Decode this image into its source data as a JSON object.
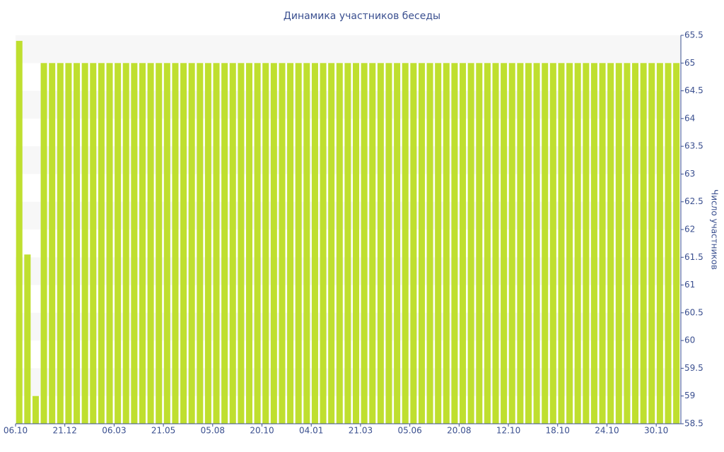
{
  "chart_data": {
    "type": "bar",
    "title": "Динамика участников беседы",
    "y_label": "Число участников",
    "y_axis_position": "right",
    "color": "#bfdf2f",
    "grid_bands": true,
    "categories": [
      "06.10",
      null,
      null,
      null,
      null,
      null,
      "21.12",
      null,
      null,
      null,
      null,
      null,
      "06.03",
      null,
      null,
      null,
      null,
      null,
      "21.05",
      null,
      null,
      null,
      null,
      null,
      "05.08",
      null,
      null,
      null,
      null,
      null,
      "20.10",
      null,
      null,
      null,
      null,
      null,
      "04.01",
      null,
      null,
      null,
      null,
      null,
      "21.03",
      null,
      null,
      null,
      null,
      null,
      "05.06",
      null,
      null,
      null,
      null,
      null,
      "20.08",
      null,
      null,
      null,
      null,
      null,
      "12.10",
      null,
      null,
      null,
      null,
      null,
      "18.10",
      null,
      null,
      null,
      null,
      null,
      "24.10",
      null,
      null,
      null,
      null,
      null,
      "30.10",
      null,
      null
    ],
    "values": [
      65.4,
      61.55,
      59,
      65,
      65,
      65,
      65,
      65,
      65,
      65,
      65,
      65,
      65,
      65,
      65,
      65,
      65,
      65,
      65,
      65,
      65,
      65,
      65,
      65,
      65,
      65,
      65,
      65,
      65,
      65,
      65,
      65,
      65,
      65,
      65,
      65,
      65,
      65,
      65,
      65,
      65,
      65,
      65,
      65,
      65,
      65,
      65,
      65,
      65,
      65,
      65,
      65,
      65,
      65,
      65,
      65,
      65,
      65,
      65,
      65,
      65,
      65,
      65,
      65,
      65,
      65,
      65,
      65,
      65,
      65,
      65,
      65,
      65,
      65,
      65,
      65,
      65,
      65,
      65,
      65,
      65
    ],
    "ylim": [
      58.5,
      65.5
    ],
    "yticks": [
      58.5,
      59,
      59.5,
      60,
      60.5,
      61,
      61.5,
      62,
      62.5,
      63,
      63.5,
      64,
      64.5,
      65,
      65.5
    ]
  }
}
